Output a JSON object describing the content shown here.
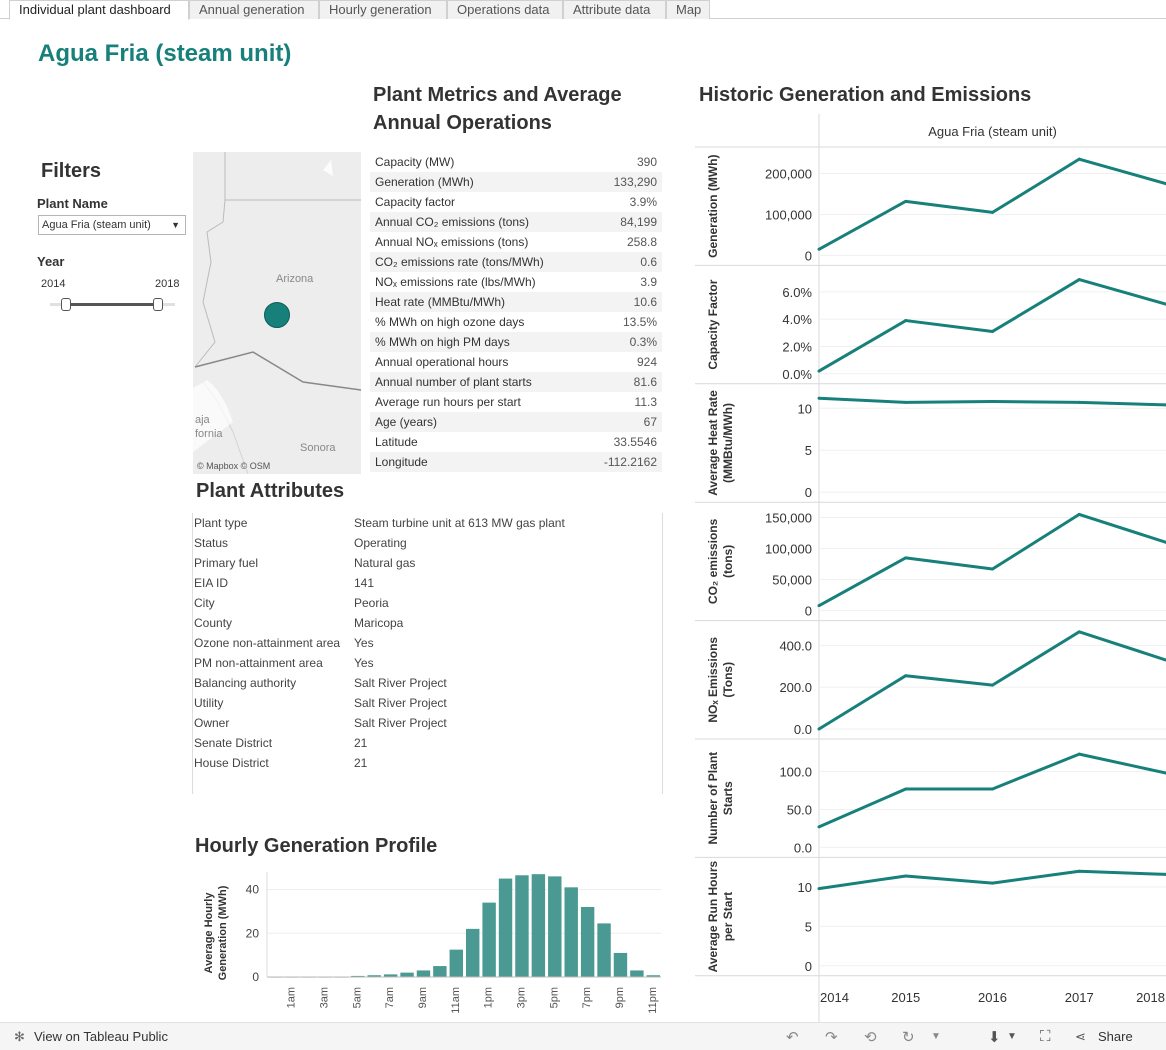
{
  "tabs": [
    {
      "label": "Individual plant dashboard",
      "active": true
    },
    {
      "label": "Annual generation"
    },
    {
      "label": "Hourly generation"
    },
    {
      "label": "Operations data"
    },
    {
      "label": "Attribute data"
    },
    {
      "label": "Map"
    }
  ],
  "title": "Agua Fria (steam unit)",
  "filters": {
    "heading": "Filters",
    "plant_name_label": "Plant Name",
    "plant_name_value": "Agua Fria (steam unit)",
    "year_label": "Year",
    "year_min": "2014",
    "year_max": "2018"
  },
  "map": {
    "label_arizona": "Arizona",
    "label_baja": "aja",
    "label_baja2": "fornia",
    "label_sonora": "Sonora",
    "credit": "© Mapbox  © OSM"
  },
  "metrics": {
    "heading": "Plant Metrics and Average Annual Operations",
    "rows": [
      {
        "label": "Capacity (MW)",
        "value": "390"
      },
      {
        "label": "Generation (MWh)",
        "value": "133,290"
      },
      {
        "label": "Capacity factor",
        "value": "3.9%"
      },
      {
        "label": "Annual CO₂ emissions (tons)",
        "value": "84,199"
      },
      {
        "label": "Annual NOₓ emissions (tons)",
        "value": "258.8"
      },
      {
        "label": "CO₂ emissions rate (tons/MWh)",
        "value": "0.6"
      },
      {
        "label": "NOₓ emissions rate (lbs/MWh)",
        "value": "3.9"
      },
      {
        "label": "Heat rate (MMBtu/MWh)",
        "value": "10.6"
      },
      {
        "label": "% MWh on high ozone days",
        "value": "13.5%"
      },
      {
        "label": "% MWh on high PM days",
        "value": "0.3%"
      },
      {
        "label": "Annual operational hours",
        "value": "924"
      },
      {
        "label": "Annual number of plant starts",
        "value": "81.6"
      },
      {
        "label": "Average run hours per start",
        "value": "11.3"
      },
      {
        "label": "Age (years)",
        "value": "67"
      },
      {
        "label": "Latitude",
        "value": "33.5546"
      },
      {
        "label": "Longitude",
        "value": "-112.2162"
      }
    ]
  },
  "attributes": {
    "heading": "Plant Attributes",
    "rows": [
      {
        "label": "Plant type",
        "value": "Steam turbine unit at 613 MW gas plant"
      },
      {
        "label": "Status",
        "value": "Operating"
      },
      {
        "label": "Primary fuel",
        "value": "Natural gas"
      },
      {
        "label": "EIA ID",
        "value": "141"
      },
      {
        "label": "City",
        "value": "Peoria"
      },
      {
        "label": "County",
        "value": "Maricopa"
      },
      {
        "label": "Ozone non-attainment area",
        "value": "Yes"
      },
      {
        "label": "PM non-attainment area",
        "value": "Yes"
      },
      {
        "label": "Balancing authority",
        "value": "Salt River Project"
      },
      {
        "label": "Utility",
        "value": "Salt River Project"
      },
      {
        "label": "Owner",
        "value": "Salt River Project"
      },
      {
        "label": "Senate District",
        "value": "21"
      },
      {
        "label": "House District",
        "value": "21"
      }
    ]
  },
  "hourly": {
    "heading": "Hourly Generation Profile"
  },
  "historic": {
    "heading": "Historic Generation and Emissions",
    "plant_header": "Agua Fria (steam unit)"
  },
  "chart_data": [
    {
      "type": "bar",
      "ylabel": "Average Hourly Generation (MWh)",
      "categories": [
        "12am",
        "1am",
        "2am",
        "3am",
        "4am",
        "5am",
        "6am",
        "7am",
        "8am",
        "9am",
        "10am",
        "11am",
        "12pm",
        "1pm",
        "2pm",
        "3pm",
        "4pm",
        "5pm",
        "6pm",
        "7pm",
        "8pm",
        "9pm",
        "10pm",
        "11pm"
      ],
      "tick_labels": [
        "1am",
        "3am",
        "5am",
        "7am",
        "9am",
        "11am",
        "1pm",
        "3pm",
        "5pm",
        "7pm",
        "9pm",
        "11pm"
      ],
      "values": [
        0,
        0,
        0,
        0,
        0,
        0.5,
        0.8,
        1.2,
        2,
        3,
        5,
        12.5,
        22,
        34,
        45,
        46.5,
        47,
        46,
        41,
        32,
        24.5,
        11,
        3,
        0.8
      ],
      "yticks": [
        0,
        20,
        40
      ],
      "ylim": [
        0,
        48
      ],
      "color": "#4a9a93"
    },
    {
      "type": "line",
      "x": [
        2014,
        2015,
        2016,
        2017,
        2018
      ],
      "color": "#17807a",
      "panels": [
        {
          "ylabel": "Generation (MWh)",
          "values": [
            15000,
            132000,
            105000,
            235000,
            175000
          ],
          "yticks": [
            0,
            100000,
            200000
          ],
          "tick_labels": [
            "0",
            "100,000",
            "200,000"
          ],
          "ylim": [
            0,
            250000
          ]
        },
        {
          "ylabel": "Capacity Factor",
          "values": [
            0.2,
            3.9,
            3.1,
            6.9,
            5.1
          ],
          "yticks": [
            0,
            2,
            4,
            6
          ],
          "tick_labels": [
            "0.0%",
            "2.0%",
            "4.0%",
            "6.0%"
          ],
          "ylim": [
            0,
            7.5
          ]
        },
        {
          "ylabel": "Average Heat Rate (MMBtu/MWh)",
          "values": [
            11.2,
            10.7,
            10.8,
            10.7,
            10.4
          ],
          "yticks": [
            0,
            5,
            10
          ],
          "tick_labels": [
            "0",
            "5",
            "10"
          ],
          "ylim": [
            0,
            12.2
          ]
        },
        {
          "ylabel": "CO₂ emissions (tons)",
          "values": [
            8000,
            85000,
            67000,
            155000,
            110000
          ],
          "yticks": [
            0,
            50000,
            100000,
            150000
          ],
          "tick_labels": [
            "0",
            "50,000",
            "100,000",
            "150,000"
          ],
          "ylim": [
            0,
            165000
          ]
        },
        {
          "ylabel": "NOₓ Emissions (Tons)",
          "values": [
            0,
            255,
            210,
            465,
            330
          ],
          "yticks": [
            0,
            200,
            400
          ],
          "tick_labels": [
            "0.0",
            "200.0",
            "400.0"
          ],
          "ylim": [
            0,
            490
          ]
        },
        {
          "ylabel": "Number of Plant Starts",
          "values": [
            27,
            77,
            77,
            123,
            98
          ],
          "yticks": [
            0,
            50,
            100
          ],
          "tick_labels": [
            "0.0",
            "50.0",
            "100.0"
          ],
          "ylim": [
            0,
            135
          ]
        },
        {
          "ylabel": "Average Run Hours per Start",
          "values": [
            9.8,
            11.4,
            10.5,
            12.0,
            11.6
          ],
          "yticks": [
            0,
            5,
            10
          ],
          "tick_labels": [
            "0",
            "5",
            "10"
          ],
          "ylim": [
            0,
            13
          ]
        }
      ]
    }
  ],
  "footer": {
    "view_link": "View on Tableau Public",
    "share": "Share"
  }
}
